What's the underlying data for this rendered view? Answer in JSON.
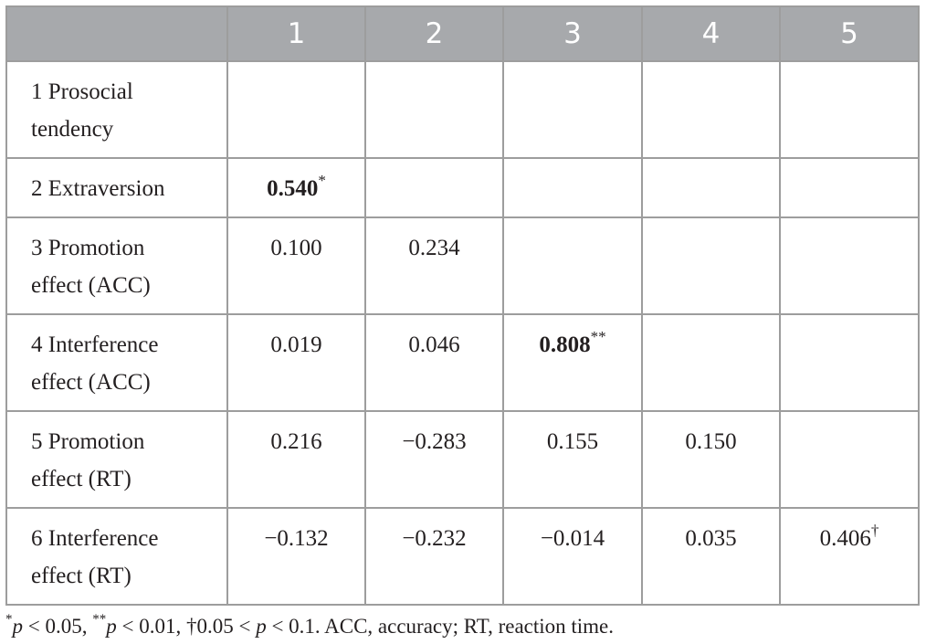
{
  "table": {
    "column_headers": [
      "",
      "1",
      "2",
      "3",
      "4",
      "5"
    ],
    "rows": [
      {
        "label_line1": "1 Prosocial",
        "label_line2": "tendency",
        "cells": [
          {
            "value": "",
            "mark": "",
            "bold": false
          },
          {
            "value": "",
            "mark": "",
            "bold": false
          },
          {
            "value": "",
            "mark": "",
            "bold": false
          },
          {
            "value": "",
            "mark": "",
            "bold": false
          },
          {
            "value": "",
            "mark": "",
            "bold": false
          }
        ]
      },
      {
        "label_line1": "2 Extraversion",
        "label_line2": "",
        "cells": [
          {
            "value": "0.540",
            "mark": "*",
            "bold": true
          },
          {
            "value": "",
            "mark": "",
            "bold": false
          },
          {
            "value": "",
            "mark": "",
            "bold": false
          },
          {
            "value": "",
            "mark": "",
            "bold": false
          },
          {
            "value": "",
            "mark": "",
            "bold": false
          }
        ]
      },
      {
        "label_line1": "3 Promotion",
        "label_line2": "effect (ACC)",
        "cells": [
          {
            "value": "0.100",
            "mark": "",
            "bold": false
          },
          {
            "value": "0.234",
            "mark": "",
            "bold": false
          },
          {
            "value": "",
            "mark": "",
            "bold": false
          },
          {
            "value": "",
            "mark": "",
            "bold": false
          },
          {
            "value": "",
            "mark": "",
            "bold": false
          }
        ]
      },
      {
        "label_line1": "4 Interference",
        "label_line2": "effect (ACC)",
        "cells": [
          {
            "value": "0.019",
            "mark": "",
            "bold": false
          },
          {
            "value": "0.046",
            "mark": "",
            "bold": false
          },
          {
            "value": "0.808",
            "mark": "**",
            "bold": true
          },
          {
            "value": "",
            "mark": "",
            "bold": false
          },
          {
            "value": "",
            "mark": "",
            "bold": false
          }
        ]
      },
      {
        "label_line1": "5 Promotion",
        "label_line2": "effect (RT)",
        "cells": [
          {
            "value": "0.216",
            "mark": "",
            "bold": false
          },
          {
            "value": "−0.283",
            "mark": "",
            "bold": false
          },
          {
            "value": "0.155",
            "mark": "",
            "bold": false
          },
          {
            "value": "0.150",
            "mark": "",
            "bold": false
          },
          {
            "value": "",
            "mark": "",
            "bold": false
          }
        ]
      },
      {
        "label_line1": "6 Interference",
        "label_line2": "effect (RT)",
        "cells": [
          {
            "value": "−0.132",
            "mark": "",
            "bold": false
          },
          {
            "value": "−0.232",
            "mark": "",
            "bold": false
          },
          {
            "value": "−0.014",
            "mark": "",
            "bold": false
          },
          {
            "value": "0.035",
            "mark": "",
            "bold": false
          },
          {
            "value": "0.406",
            "mark": "†",
            "bold": false
          }
        ]
      }
    ]
  },
  "footnote": {
    "star1": "*",
    "p1": "p",
    "t1": " < 0.05, ",
    "star2": "**",
    "p2": "p",
    "t2": " < 0.01, †0.05 < ",
    "p3": "p",
    "t3": " < 0.1. ACC, accuracy; RT, reaction time."
  }
}
